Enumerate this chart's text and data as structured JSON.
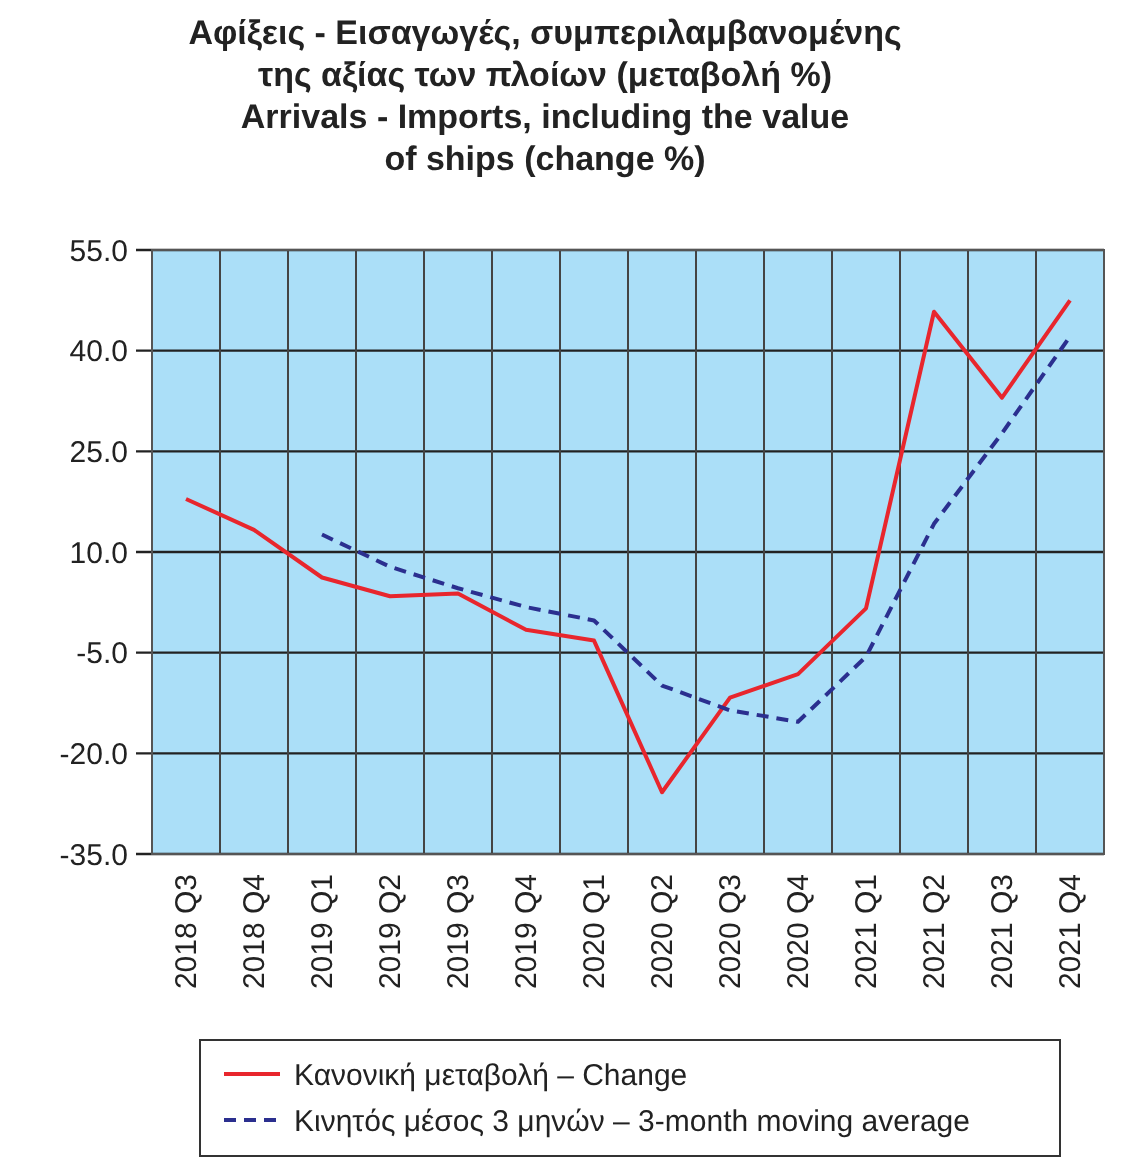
{
  "chart_data": {
    "type": "line",
    "title": "Αφίξεις - Εισαγωγές, συμπεριλαμβανομένης\nτης αξίας των πλοίων (μεταβολή %)\nArrivals - Imports, including the value\nof ships (change %)",
    "categories": [
      "2018 Q3",
      "2018 Q4",
      "2019 Q1",
      "2019 Q2",
      "2019 Q3",
      "2019 Q4",
      "2020 Q1",
      "2020 Q2",
      "2020 Q3",
      "2020 Q4",
      "2021 Q1",
      "2021 Q2",
      "2021 Q3",
      "2021 Q4"
    ],
    "series": [
      {
        "name": "Κανονική μεταβολή – Change",
        "color": "#e8262d",
        "line_style": "solid",
        "values": [
          17.9,
          13.3,
          6.2,
          3.4,
          3.8,
          -1.6,
          -3.2,
          -25.8,
          -11.7,
          -8.2,
          1.6,
          45.8,
          33,
          47.5
        ]
      },
      {
        "name": "Κινητός μέσος 3 μηνών – 3-month moving average",
        "color": "#2b2f8f",
        "line_style": "dashed",
        "values": [
          null,
          null,
          12.6,
          7.8,
          4.6,
          1.8,
          -0.2,
          -9.9,
          -13.6,
          -15.3,
          -5.6,
          14.2,
          27.7,
          42.1
        ]
      }
    ],
    "ylim": [
      -35,
      55
    ],
    "yticks": [
      {
        "value": 55,
        "label": "55.0"
      },
      {
        "value": 40,
        "label": "40.0"
      },
      {
        "value": 25,
        "label": "25.0"
      },
      {
        "value": 10,
        "label": "10.0"
      },
      {
        "value": -5,
        "label": "-5.0"
      },
      {
        "value": -20,
        "label": "-20.0"
      },
      {
        "value": -35,
        "label": "-35.0"
      }
    ],
    "grid": true,
    "legend": "bottom"
  }
}
